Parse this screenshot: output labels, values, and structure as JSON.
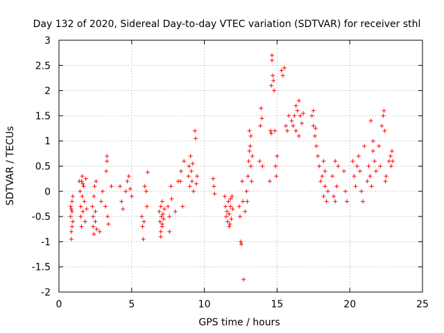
{
  "chart_data": {
    "type": "scatter",
    "title": "Day 132 of 2020, Sidereal Day-to-day VTEC variation (SDTVAR) for receiver sthl",
    "xlabel": "GPS time / hours",
    "ylabel": "SDTVAR / TECUs",
    "xlim": [
      0,
      25
    ],
    "ylim": [
      -2,
      3
    ],
    "x_ticks": [
      0,
      5,
      10,
      15,
      20,
      25
    ],
    "x_tick_labels": [
      "0",
      "5",
      "10",
      "15",
      "20",
      "25"
    ],
    "y_ticks": [
      -2,
      -1.5,
      -1,
      -0.5,
      0,
      0.5,
      1,
      1.5,
      2,
      2.5,
      3
    ],
    "y_tick_labels": [
      "-2",
      "-1.5",
      "-1",
      "-0.5",
      "0",
      "0.5",
      "1",
      "1.5",
      "2",
      "2.5",
      "3"
    ],
    "grid": true,
    "marker": "+",
    "color": "#ff0000",
    "series": [
      {
        "name": "SDTVAR",
        "points": [
          [
            0.8,
            -0.3
          ],
          [
            0.8,
            -0.5
          ],
          [
            0.85,
            -0.8
          ],
          [
            0.85,
            -0.95
          ],
          [
            0.9,
            -0.2
          ],
          [
            0.9,
            -0.4
          ],
          [
            0.95,
            -0.6
          ],
          [
            0.95,
            -0.1
          ],
          [
            0.85,
            -0.35
          ],
          [
            0.9,
            -0.7
          ],
          [
            1.4,
            0.2
          ],
          [
            1.45,
            0.0
          ],
          [
            1.5,
            -0.3
          ],
          [
            1.5,
            -0.5
          ],
          [
            1.55,
            -0.7
          ],
          [
            1.6,
            0.3
          ],
          [
            1.6,
            -0.1
          ],
          [
            1.65,
            -0.4
          ],
          [
            1.7,
            0.1
          ],
          [
            1.75,
            -0.2
          ],
          [
            1.8,
            -0.6
          ],
          [
            1.85,
            0.25
          ],
          [
            1.9,
            -0.35
          ],
          [
            1.55,
            0.2
          ],
          [
            1.65,
            0.15
          ],
          [
            2.3,
            -0.3
          ],
          [
            2.35,
            -0.5
          ],
          [
            2.35,
            -0.7
          ],
          [
            2.4,
            -0.85
          ],
          [
            2.4,
            -0.1
          ],
          [
            2.45,
            0.1
          ],
          [
            2.5,
            -0.6
          ],
          [
            2.5,
            -0.4
          ],
          [
            2.55,
            0.2
          ],
          [
            2.6,
            -0.75
          ],
          [
            2.8,
            -0.8
          ],
          [
            2.9,
            -0.2
          ],
          [
            3.0,
            0.0
          ],
          [
            3.2,
            -0.3
          ],
          [
            3.25,
            0.4
          ],
          [
            3.3,
            0.6
          ],
          [
            3.3,
            0.7
          ],
          [
            3.35,
            -0.5
          ],
          [
            3.4,
            -0.65
          ],
          [
            3.6,
            0.1
          ],
          [
            4.2,
            0.1
          ],
          [
            4.3,
            -0.2
          ],
          [
            4.4,
            -0.35
          ],
          [
            4.6,
            0.0
          ],
          [
            4.7,
            0.2
          ],
          [
            4.8,
            0.3
          ],
          [
            4.9,
            0.05
          ],
          [
            5.0,
            -0.1
          ],
          [
            5.7,
            -0.5
          ],
          [
            5.75,
            -0.7
          ],
          [
            5.8,
            -0.95
          ],
          [
            5.85,
            -0.6
          ],
          [
            5.9,
            0.1
          ],
          [
            6.0,
            0.0
          ],
          [
            6.05,
            -0.3
          ],
          [
            6.1,
            0.38
          ],
          [
            6.9,
            -0.4
          ],
          [
            6.95,
            -0.6
          ],
          [
            7.0,
            -0.8
          ],
          [
            7.0,
            -0.3
          ],
          [
            7.05,
            -0.5
          ],
          [
            7.1,
            -0.7
          ],
          [
            7.1,
            -0.2
          ],
          [
            7.15,
            -0.45
          ],
          [
            7.2,
            -0.55
          ],
          [
            7.25,
            -0.35
          ],
          [
            7.0,
            -0.9
          ],
          [
            7.1,
            -0.65
          ],
          [
            7.5,
            -0.3
          ],
          [
            7.6,
            -0.5
          ],
          [
            7.6,
            -0.8
          ],
          [
            7.7,
            0.1
          ],
          [
            7.75,
            -0.15
          ],
          [
            8.0,
            -0.4
          ],
          [
            8.2,
            0.2
          ],
          [
            8.35,
            0.2
          ],
          [
            8.4,
            0.4
          ],
          [
            8.5,
            -0.3
          ],
          [
            8.6,
            0.6
          ],
          [
            8.9,
            0.3
          ],
          [
            8.95,
            0.5
          ],
          [
            9.0,
            0.1
          ],
          [
            9.05,
            0.7
          ],
          [
            9.1,
            0.4
          ],
          [
            9.15,
            0.2
          ],
          [
            9.2,
            0.55
          ],
          [
            9.25,
            0.0
          ],
          [
            9.35,
            1.2
          ],
          [
            9.4,
            1.05
          ],
          [
            9.45,
            0.15
          ],
          [
            9.5,
            0.3
          ],
          [
            10.6,
            0.25
          ],
          [
            10.65,
            0.1
          ],
          [
            10.7,
            -0.05
          ],
          [
            11.4,
            -0.1
          ],
          [
            11.45,
            -0.3
          ],
          [
            11.5,
            -0.5
          ],
          [
            11.55,
            -0.4
          ],
          [
            11.6,
            -0.6
          ],
          [
            11.65,
            -0.2
          ],
          [
            11.7,
            -0.45
          ],
          [
            11.75,
            -0.65
          ],
          [
            11.8,
            -0.3
          ],
          [
            11.85,
            -0.55
          ],
          [
            11.9,
            -0.1
          ],
          [
            11.95,
            -0.35
          ],
          [
            11.7,
            -0.7
          ],
          [
            11.8,
            -0.15
          ],
          [
            12.4,
            -0.3
          ],
          [
            12.45,
            -0.5
          ],
          [
            12.5,
            -1.0
          ],
          [
            12.55,
            -1.05
          ],
          [
            12.6,
            0.2
          ],
          [
            12.65,
            -0.2
          ],
          [
            12.7,
            -1.75
          ],
          [
            12.8,
            -0.4
          ],
          [
            12.9,
            0.0
          ],
          [
            12.95,
            -0.2
          ],
          [
            13.0,
            0.3
          ],
          [
            13.05,
            0.6
          ],
          [
            13.1,
            0.8
          ],
          [
            13.15,
            0.9
          ],
          [
            13.2,
            0.5
          ],
          [
            13.25,
            0.2
          ],
          [
            13.3,
            0.7
          ],
          [
            13.1,
            1.2
          ],
          [
            13.2,
            1.1
          ],
          [
            13.8,
            0.6
          ],
          [
            13.85,
            1.3
          ],
          [
            13.9,
            1.65
          ],
          [
            13.95,
            1.45
          ],
          [
            14.0,
            0.5
          ],
          [
            14.5,
            0.2
          ],
          [
            14.55,
            1.2
          ],
          [
            14.6,
            1.15
          ],
          [
            14.6,
            2.1
          ],
          [
            14.65,
            2.6
          ],
          [
            14.65,
            2.7
          ],
          [
            14.7,
            2.3
          ],
          [
            14.75,
            2.2
          ],
          [
            14.8,
            2.0
          ],
          [
            14.85,
            1.2
          ],
          [
            14.9,
            0.5
          ],
          [
            14.95,
            0.3
          ],
          [
            15.0,
            0.7
          ],
          [
            15.3,
            2.4
          ],
          [
            15.4,
            2.3
          ],
          [
            15.5,
            2.45
          ],
          [
            15.6,
            1.3
          ],
          [
            15.7,
            1.2
          ],
          [
            15.8,
            1.5
          ],
          [
            16.0,
            1.4
          ],
          [
            16.1,
            1.3
          ],
          [
            16.2,
            1.5
          ],
          [
            16.3,
            1.7
          ],
          [
            16.4,
            1.6
          ],
          [
            16.5,
            1.8
          ],
          [
            16.6,
            1.5
          ],
          [
            16.7,
            1.35
          ],
          [
            16.8,
            1.55
          ],
          [
            16.3,
            1.2
          ],
          [
            16.5,
            1.1
          ],
          [
            17.4,
            1.5
          ],
          [
            17.5,
            1.3
          ],
          [
            17.6,
            1.1
          ],
          [
            17.7,
            0.9
          ],
          [
            17.8,
            0.7
          ],
          [
            17.9,
            0.5
          ],
          [
            17.5,
            1.6
          ],
          [
            17.65,
            1.25
          ],
          [
            18.0,
            0.2
          ],
          [
            18.1,
            0.3
          ],
          [
            18.2,
            -0.1
          ],
          [
            18.3,
            0.1
          ],
          [
            18.4,
            -0.2
          ],
          [
            18.5,
            0.0
          ],
          [
            18.2,
            0.6
          ],
          [
            18.3,
            0.4
          ],
          [
            18.8,
            0.3
          ],
          [
            18.9,
            -0.1
          ],
          [
            19.0,
            -0.2
          ],
          [
            19.1,
            0.1
          ],
          [
            19.2,
            0.5
          ],
          [
            19.0,
            0.6
          ],
          [
            19.6,
            0.4
          ],
          [
            19.7,
            0.0
          ],
          [
            19.8,
            -0.2
          ],
          [
            20.2,
            0.6
          ],
          [
            20.3,
            0.3
          ],
          [
            20.4,
            0.1
          ],
          [
            20.5,
            0.5
          ],
          [
            20.6,
            0.7
          ],
          [
            20.7,
            0.4
          ],
          [
            20.8,
            0.0
          ],
          [
            20.9,
            -0.2
          ],
          [
            21.0,
            0.9
          ],
          [
            21.2,
            0.2
          ],
          [
            21.3,
            0.5
          ],
          [
            21.4,
            0.3
          ],
          [
            21.45,
            1.4
          ],
          [
            21.5,
            0.1
          ],
          [
            21.6,
            0.8
          ],
          [
            21.7,
            0.6
          ],
          [
            21.8,
            0.4
          ],
          [
            21.6,
            1.0
          ],
          [
            22.0,
            0.9
          ],
          [
            22.1,
            0.5
          ],
          [
            22.2,
            1.3
          ],
          [
            22.3,
            1.5
          ],
          [
            22.35,
            1.6
          ],
          [
            22.4,
            1.2
          ],
          [
            22.45,
            0.2
          ],
          [
            22.5,
            0.3
          ],
          [
            22.7,
            0.6
          ],
          [
            22.8,
            0.7
          ],
          [
            22.85,
            0.5
          ],
          [
            22.9,
            0.8
          ],
          [
            22.95,
            0.6
          ]
        ]
      }
    ]
  }
}
